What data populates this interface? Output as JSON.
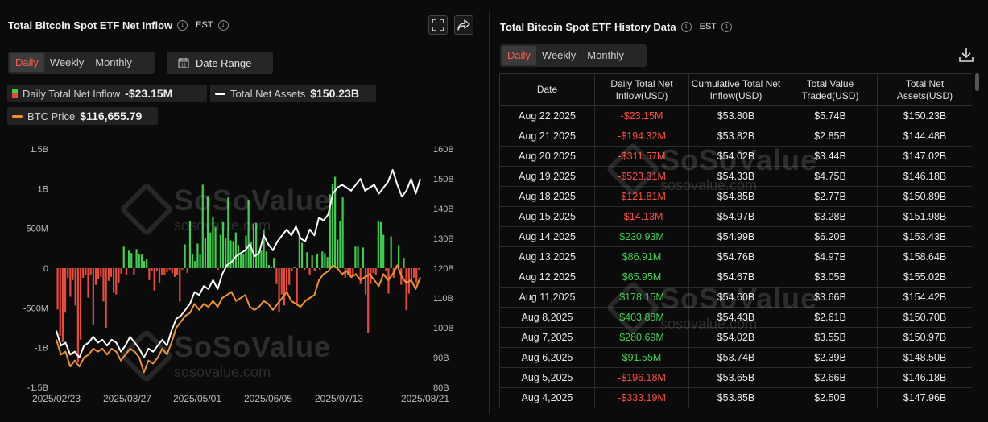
{
  "left": {
    "title": "Total Bitcoin Spot ETF Net Inflow",
    "timezone": "EST",
    "tabs": [
      "Daily",
      "Weekly",
      "Monthly"
    ],
    "active_tab": "Daily",
    "date_range_label": "Date Range",
    "legend": {
      "inflow_label": "Daily Total Net Inflow",
      "inflow_value": "-$23.15M",
      "assets_label": "Total Net Assets",
      "assets_value": "$150.23B",
      "btc_label": "BTC Price",
      "btc_value": "$116,655.79"
    },
    "watermark": {
      "brand": "SoSoValue",
      "url": "sosovalue.com"
    }
  },
  "chart_data": {
    "type": "bar",
    "x_ticks": [
      "2025/02/23",
      "2025/03/27",
      "2025/05/01",
      "2025/06/05",
      "2025/07/13",
      "2025/08/21"
    ],
    "y_left_ticks": [
      "1.5B",
      "1B",
      "500M",
      "0",
      "-500M",
      "-1B",
      "-1.5B"
    ],
    "y_left_range": [
      -1500,
      1500
    ],
    "y_right_ticks": [
      "160B",
      "150B",
      "140B",
      "130B",
      "120B",
      "110B",
      "100B",
      "90B",
      "80B"
    ],
    "y_right_range": [
      80,
      160
    ],
    "series": [
      {
        "name": "Daily Total Net Inflow",
        "type": "bar",
        "unit": "M USD",
        "colors": {
          "pos": "#3ecf4f",
          "neg": "#e84b3c"
        },
        "values": [
          -520,
          -850,
          -930,
          -560,
          -120,
          -360,
          -150,
          -470,
          -1180,
          -900,
          -120,
          -90,
          -370,
          -90,
          -710,
          -210,
          -140,
          -110,
          -420,
          -750,
          -160,
          -110,
          -310,
          -330,
          -180,
          -70,
          270,
          -90,
          220,
          190,
          -90,
          240,
          180,
          170,
          90,
          120,
          -150,
          -40,
          -280,
          -40,
          -180,
          -90,
          -80,
          -50,
          -20,
          -60,
          -110,
          -90,
          -420,
          -20,
          300,
          -60,
          590,
          170,
          90,
          310,
          170,
          1050,
          380,
          910,
          450,
          640,
          520,
          -20,
          420,
          580,
          380,
          890,
          350,
          340,
          450,
          290,
          190,
          180,
          410,
          860,
          330,
          560,
          570,
          180,
          220,
          490,
          210,
          40,
          20,
          130,
          -200,
          -560,
          -330,
          -470,
          -300,
          -210,
          -40,
          10,
          -470,
          400,
          320,
          -20,
          200,
          -90,
          160,
          -30,
          180,
          -20,
          210,
          190,
          140,
          930,
          1060,
          1150,
          360,
          590,
          890,
          -120,
          -90,
          -100,
          -100,
          270,
          270,
          -200,
          260,
          -330,
          -810,
          -200,
          -60,
          -80,
          600,
          580,
          420,
          -40,
          -320,
          400,
          -120,
          -10,
          290,
          -210,
          130,
          -530,
          -320,
          -190,
          -120,
          -180,
          -20
        ]
      },
      {
        "name": "Total Net Assets",
        "type": "line",
        "unit": "B USD",
        "color": "#ffffff",
        "values": [
          99,
          94,
          95,
          91,
          92,
          90,
          94,
          95,
          97,
          95,
          96,
          94,
          96,
          95,
          92,
          94,
          97,
          95,
          93,
          90,
          93,
          92,
          94,
          96,
          94,
          99,
          103,
          104,
          106,
          108,
          112,
          111,
          114,
          113,
          116,
          113,
          118,
          121,
          122,
          124,
          125,
          126,
          128,
          124,
          125,
          131,
          128,
          126,
          129,
          131,
          133,
          131,
          134,
          130,
          129,
          133,
          131,
          137,
          136,
          138,
          145,
          147,
          148,
          147,
          146,
          148,
          150,
          146,
          147,
          148,
          145,
          147,
          149,
          153,
          148,
          144,
          146,
          150,
          145,
          150
        ]
      },
      {
        "name": "BTC Price",
        "type": "line",
        "unit": "K USD",
        "color": "#f0922b",
        "values": [
          96,
          91,
          92,
          87,
          89,
          87,
          90,
          91,
          93,
          92,
          93,
          91,
          93,
          92,
          89,
          91,
          93,
          92,
          90,
          85,
          89,
          88,
          90,
          93,
          91,
          95,
          100,
          102,
          104,
          105,
          108,
          106,
          108,
          107,
          109,
          107,
          110,
          111,
          112,
          109,
          110,
          111,
          107,
          106,
          107,
          109,
          108,
          106,
          108,
          110,
          112,
          109,
          108,
          107,
          109,
          110,
          111,
          116,
          118,
          119,
          121,
          120,
          118,
          119,
          117,
          118,
          116,
          117,
          118,
          116,
          114,
          118,
          116,
          118,
          121,
          117,
          115,
          116,
          113,
          117
        ]
      }
    ]
  },
  "right": {
    "title": "Total Bitcoin Spot ETF History Data",
    "timezone": "EST",
    "tabs": [
      "Daily",
      "Weekly",
      "Monthly"
    ],
    "active_tab": "Daily",
    "columns": [
      "Date",
      "Daily Total Net Inflow(USD)",
      "Cumulative Total Net Inflow(USD)",
      "Total Value Traded(USD)",
      "Total Net Assets(USD)"
    ],
    "rows": [
      [
        "Aug 22,2025",
        "-$23.15M",
        "$53.80B",
        "$5.74B",
        "$150.23B"
      ],
      [
        "Aug 21,2025",
        "-$194.32M",
        "$53.82B",
        "$2.85B",
        "$144.48B"
      ],
      [
        "Aug 20,2025",
        "-$311.57M",
        "$54.02B",
        "$3.44B",
        "$147.02B"
      ],
      [
        "Aug 19,2025",
        "-$523.31M",
        "$54.33B",
        "$4.75B",
        "$146.18B"
      ],
      [
        "Aug 18,2025",
        "-$121.81M",
        "$54.85B",
        "$2.77B",
        "$150.89B"
      ],
      [
        "Aug 15,2025",
        "-$14.13M",
        "$54.97B",
        "$3.28B",
        "$151.98B"
      ],
      [
        "Aug 14,2025",
        "$230.93M",
        "$54.99B",
        "$6.20B",
        "$153.43B"
      ],
      [
        "Aug 13,2025",
        "$86.91M",
        "$54.76B",
        "$4.97B",
        "$158.64B"
      ],
      [
        "Aug 12,2025",
        "$65.95M",
        "$54.67B",
        "$3.05B",
        "$155.02B"
      ],
      [
        "Aug 11,2025",
        "$178.15M",
        "$54.60B",
        "$3.66B",
        "$154.42B"
      ],
      [
        "Aug 8,2025",
        "$403.88M",
        "$54.43B",
        "$2.61B",
        "$150.70B"
      ],
      [
        "Aug 7,2025",
        "$280.69M",
        "$54.02B",
        "$3.55B",
        "$150.97B"
      ],
      [
        "Aug 6,2025",
        "$91.55M",
        "$53.74B",
        "$2.39B",
        "$148.50B"
      ],
      [
        "Aug 5,2025",
        "-$196.18M",
        "$53.65B",
        "$2.66B",
        "$146.18B"
      ],
      [
        "Aug 4,2025",
        "-$333.19M",
        "$53.85B",
        "$2.50B",
        "$147.96B"
      ]
    ]
  }
}
